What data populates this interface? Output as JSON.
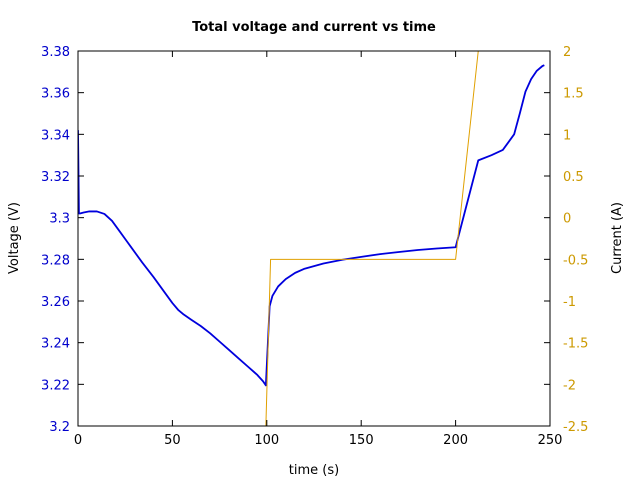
{
  "chart_data": {
    "type": "line",
    "title": "Total voltage and current vs time",
    "xlabel": "time (s)",
    "ylabel_left": "Voltage (V)",
    "ylabel_right": "Current (A)",
    "xlim": [
      0,
      250
    ],
    "ylim_left": [
      3.2,
      3.38
    ],
    "ylim_right": [
      -2.5,
      2
    ],
    "x_ticks": [
      "0",
      "50",
      "100",
      "150",
      "200",
      "250"
    ],
    "x_tick_values": [
      0,
      50,
      100,
      150,
      200,
      250
    ],
    "y_left_ticks": [
      "3.2",
      "3.22",
      "3.24",
      "3.26",
      "3.28",
      "3.3",
      "3.32",
      "3.34",
      "3.36",
      "3.38"
    ],
    "y_left_tick_values": [
      3.2,
      3.22,
      3.24,
      3.26,
      3.28,
      3.3,
      3.32,
      3.34,
      3.36,
      3.38
    ],
    "y_right_ticks": [
      "-2.5",
      "-2",
      "-1.5",
      "-1",
      "-0.5",
      "0",
      "0.5",
      "1",
      "1.5",
      "2"
    ],
    "y_right_tick_values": [
      -2.5,
      -2,
      -1.5,
      -1,
      -0.5,
      0,
      0.5,
      1,
      1.5,
      2
    ],
    "grid": false,
    "colors": {
      "voltage": "#0000dd",
      "current": "#e0a000",
      "left_ticks": "#0000cc",
      "right_ticks": "#cc9900"
    },
    "series": [
      {
        "axis": "left",
        "color": "#0000dd",
        "x": [
          0,
          0.5,
          1,
          3,
          6,
          10,
          14,
          18,
          22,
          28,
          34,
          40,
          46,
          50,
          53,
          56,
          60,
          65,
          70,
          75,
          80,
          85,
          90,
          95,
          98,
          99.5,
          101.5,
          103,
          106,
          110,
          115,
          120,
          130,
          140,
          150,
          160,
          170,
          180,
          190,
          200,
          212,
          219,
          225,
          231,
          234,
          237,
          240,
          243,
          246,
          247
        ],
        "y": [
          3.342,
          3.302,
          3.302,
          3.3025,
          3.303,
          3.303,
          3.3018,
          3.2985,
          3.2935,
          3.286,
          3.2785,
          3.2715,
          3.264,
          3.259,
          3.2558,
          3.2535,
          3.251,
          3.248,
          3.2445,
          3.2405,
          3.2365,
          3.2325,
          3.2285,
          3.2245,
          3.2215,
          3.2195,
          3.2575,
          3.2625,
          3.267,
          3.2705,
          3.2735,
          3.2755,
          3.278,
          3.2798,
          3.2812,
          3.2825,
          3.2835,
          3.2845,
          3.2852,
          3.2858,
          3.3275,
          3.33,
          3.3325,
          3.34,
          3.35,
          3.3605,
          3.3665,
          3.3705,
          3.3728,
          3.3732
        ]
      },
      {
        "axis": "right",
        "color": "#e0a000",
        "x": [
          99.5,
          102,
          200,
          212
        ],
        "y": [
          -2.5,
          -0.5,
          -0.5,
          2
        ]
      }
    ]
  }
}
